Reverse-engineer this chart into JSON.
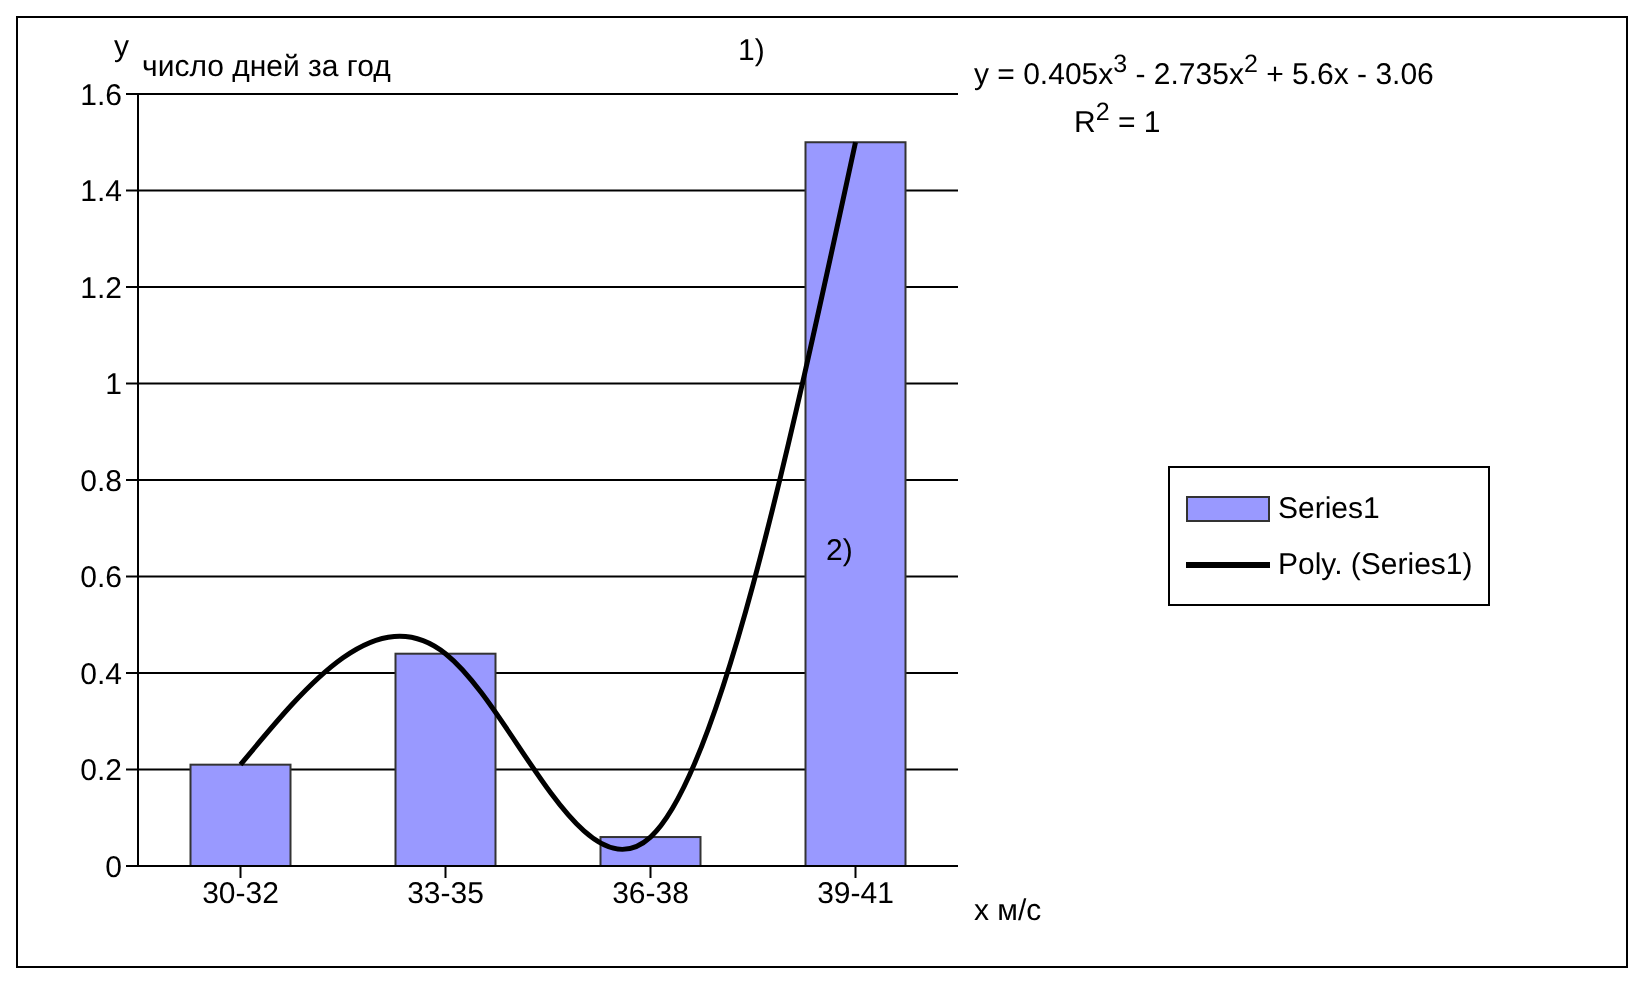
{
  "chart_data": {
    "type": "bar",
    "ylabel": "y",
    "xlabel": "x  м/с",
    "categories": [
      "30-32",
      "33-35",
      "36-38",
      "39-41"
    ],
    "series": [
      {
        "name": "Series1",
        "color": "#9999ff",
        "values": [
          0.21,
          0.44,
          0.06,
          1.5
        ]
      },
      {
        "name": "Poly. (Series1)",
        "type": "line",
        "color": "#000000",
        "values": [
          0.21,
          0.44,
          0.06,
          1.5
        ]
      }
    ],
    "ylim": [
      0,
      1.6
    ],
    "yticks": [
      0,
      0.2,
      0.4,
      0.6,
      0.8,
      1,
      1.2,
      1.4,
      1.6
    ],
    "grid": "y",
    "legend": "right",
    "marker": "none",
    "annotations": [
      "число дней за год",
      "1)",
      "y = 0.405x$^{3}$ - 2.735x$^{2}$ + 5.6x - 3.06",
      "R$^{2}$ = 1",
      "2)"
    ]
  }
}
